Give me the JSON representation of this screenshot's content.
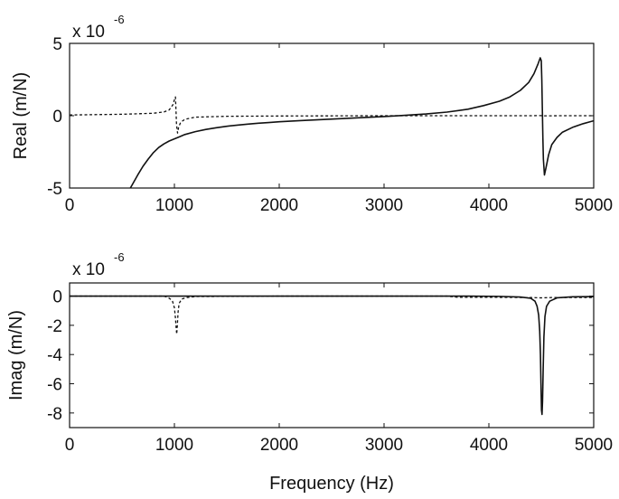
{
  "chart_data": [
    {
      "type": "line",
      "xlabel": "",
      "ylabel": "Real (m/N)",
      "scale_prefix": "x 10",
      "scale_exponent": "-6",
      "xlim": [
        0,
        5000
      ],
      "ylim": [
        -5,
        5
      ],
      "x_ticks": [
        "0",
        "1000",
        "2000",
        "3000",
        "4000",
        "5000"
      ],
      "y_ticks": [
        "-5",
        "0",
        "5"
      ],
      "y_tick_values": [
        -5,
        0,
        5
      ],
      "grid": false,
      "series": [
        {
          "style": "solid",
          "color": "#111111",
          "points": [
            [
              580,
              -5
            ],
            [
              650,
              -4.1
            ],
            [
              700,
              -3.5
            ],
            [
              750,
              -3.0
            ],
            [
              800,
              -2.55
            ],
            [
              850,
              -2.2
            ],
            [
              900,
              -1.95
            ],
            [
              950,
              -1.75
            ],
            [
              1000,
              -1.6
            ],
            [
              1050,
              -1.45
            ],
            [
              1100,
              -1.3
            ],
            [
              1200,
              -1.1
            ],
            [
              1300,
              -0.95
            ],
            [
              1400,
              -0.83
            ],
            [
              1500,
              -0.73
            ],
            [
              1600,
              -0.65
            ],
            [
              1700,
              -0.58
            ],
            [
              1800,
              -0.52
            ],
            [
              1900,
              -0.47
            ],
            [
              2000,
              -0.42
            ],
            [
              2200,
              -0.34
            ],
            [
              2400,
              -0.27
            ],
            [
              2600,
              -0.2
            ],
            [
              2800,
              -0.13
            ],
            [
              3000,
              -0.06
            ],
            [
              3200,
              0.03
            ],
            [
              3400,
              0.12
            ],
            [
              3600,
              0.25
            ],
            [
              3800,
              0.45
            ],
            [
              3950,
              0.7
            ],
            [
              4100,
              1.0
            ],
            [
              4200,
              1.3
            ],
            [
              4300,
              1.75
            ],
            [
              4380,
              2.3
            ],
            [
              4430,
              2.9
            ],
            [
              4470,
              3.6
            ],
            [
              4490,
              4.0
            ],
            [
              4500,
              3.8
            ],
            [
              4505,
              2.5
            ],
            [
              4510,
              0.5
            ],
            [
              4515,
              -1.5
            ],
            [
              4520,
              -3.0
            ],
            [
              4530,
              -4.1
            ],
            [
              4545,
              -3.6
            ],
            [
              4570,
              -2.7
            ],
            [
              4600,
              -2.0
            ],
            [
              4650,
              -1.5
            ],
            [
              4700,
              -1.15
            ],
            [
              4800,
              -0.8
            ],
            [
              4900,
              -0.55
            ],
            [
              5000,
              -0.35
            ]
          ]
        },
        {
          "style": "dashed",
          "color": "#111111",
          "points": [
            [
              0,
              0.05
            ],
            [
              500,
              0.1
            ],
            [
              800,
              0.17
            ],
            [
              900,
              0.26
            ],
            [
              950,
              0.4
            ],
            [
              985,
              0.75
            ],
            [
              1000,
              1.1
            ],
            [
              1010,
              1.3
            ],
            [
              1015,
              0.4
            ],
            [
              1020,
              -0.6
            ],
            [
              1030,
              -1.2
            ],
            [
              1040,
              -0.8
            ],
            [
              1060,
              -0.45
            ],
            [
              1100,
              -0.25
            ],
            [
              1200,
              -0.1
            ],
            [
              1500,
              -0.04
            ],
            [
              2000,
              -0.02
            ],
            [
              3000,
              0
            ],
            [
              4000,
              0
            ],
            [
              4400,
              0
            ],
            [
              4495,
              0.01
            ],
            [
              4520,
              -0.01
            ],
            [
              4700,
              0
            ],
            [
              5000,
              0
            ]
          ]
        }
      ]
    },
    {
      "type": "line",
      "xlabel": "Frequency (Hz)",
      "ylabel": "Imag (m/N)",
      "scale_prefix": "x 10",
      "scale_exponent": "-6",
      "xlim": [
        0,
        5000
      ],
      "ylim": [
        -9,
        0.9
      ],
      "x_ticks": [
        "0",
        "1000",
        "2000",
        "3000",
        "4000",
        "5000"
      ],
      "y_ticks": [
        "0",
        "-2",
        "-4",
        "-6",
        "-8"
      ],
      "y_tick_values": [
        0,
        -2,
        -4,
        -6,
        -8
      ],
      "grid": false,
      "series": [
        {
          "style": "solid",
          "color": "#111111",
          "points": [
            [
              0,
              0
            ],
            [
              3000,
              0
            ],
            [
              3800,
              0
            ],
            [
              4100,
              -0.02
            ],
            [
              4300,
              -0.06
            ],
            [
              4400,
              -0.15
            ],
            [
              4440,
              -0.35
            ],
            [
              4460,
              -0.7
            ],
            [
              4475,
              -1.3
            ],
            [
              4485,
              -2.4
            ],
            [
              4492,
              -4.0
            ],
            [
              4497,
              -6.0
            ],
            [
              4502,
              -7.8
            ],
            [
              4507,
              -8.1
            ],
            [
              4512,
              -7.2
            ],
            [
              4518,
              -5.0
            ],
            [
              4525,
              -2.8
            ],
            [
              4535,
              -1.4
            ],
            [
              4550,
              -0.7
            ],
            [
              4580,
              -0.35
            ],
            [
              4650,
              -0.12
            ],
            [
              4800,
              -0.05
            ],
            [
              5000,
              -0.03
            ]
          ]
        },
        {
          "style": "dashed",
          "color": "#111111",
          "points": [
            [
              0,
              0
            ],
            [
              900,
              0
            ],
            [
              940,
              -0.1
            ],
            [
              980,
              -0.3
            ],
            [
              1000,
              -0.8
            ],
            [
              1010,
              -1.5
            ],
            [
              1018,
              -2.3
            ],
            [
              1022,
              -2.6
            ],
            [
              1028,
              -2.0
            ],
            [
              1035,
              -1.1
            ],
            [
              1045,
              -0.5
            ],
            [
              1070,
              -0.2
            ],
            [
              1120,
              -0.1
            ],
            [
              1200,
              -0.03
            ],
            [
              2000,
              0
            ],
            [
              3600,
              0
            ],
            [
              3700,
              -0.08
            ],
            [
              4000,
              -0.08
            ],
            [
              4400,
              -0.1
            ],
            [
              4500,
              -0.12
            ],
            [
              4600,
              -0.1
            ],
            [
              5000,
              -0.1
            ]
          ]
        }
      ]
    }
  ]
}
